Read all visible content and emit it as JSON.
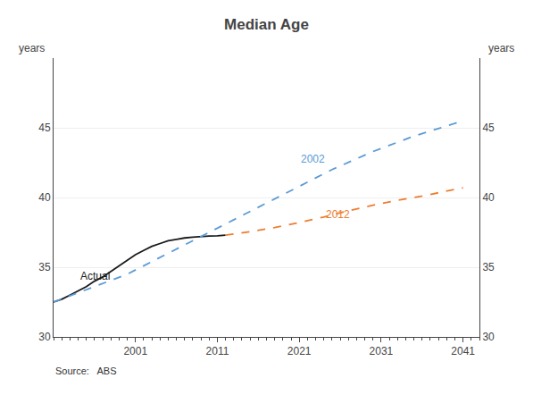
{
  "chart_data": {
    "type": "line",
    "title": "Median Age",
    "ylabel": "years",
    "y2label": "years",
    "source": "Source:   ABS",
    "xlim": [
      1991,
      2043
    ],
    "xticks": [
      2001,
      2011,
      2021,
      2031,
      2041
    ],
    "ylim": [
      30,
      50
    ],
    "yticks": [
      30,
      35,
      40,
      45
    ],
    "y2lim": [
      30,
      50
    ],
    "y2ticks": [
      30,
      35,
      40,
      45
    ],
    "grid": "y",
    "series": [
      {
        "color": "#1a1a1a",
        "line_style": "solid",
        "x": [
          1991,
          1992,
          1993,
          1994,
          1995,
          1996,
          1997,
          1998,
          1999,
          2000,
          2001,
          2002,
          2003,
          2004,
          2005,
          2006,
          2007,
          2008,
          2009,
          2010,
          2011,
          2012
        ],
        "values": [
          32.5,
          32.7,
          33.0,
          33.3,
          33.6,
          34.0,
          34.3,
          34.7,
          35.1,
          35.5,
          35.9,
          36.2,
          36.5,
          36.7,
          36.9,
          37.0,
          37.1,
          37.15,
          37.2,
          37.23,
          37.25,
          37.3
        ]
      },
      {
        "color": "#5B9BD5",
        "line_style": "dash",
        "x": [
          1991,
          1995,
          2000,
          2005,
          2010,
          2015,
          2020,
          2025,
          2030,
          2035,
          2041
        ],
        "values": [
          32.5,
          33.4,
          34.5,
          36.0,
          37.5,
          39.0,
          40.5,
          42.0,
          43.3,
          44.4,
          45.5
        ]
      },
      {
        "color": "#ED7D31",
        "line_style": "dash",
        "x": [
          2012,
          2015,
          2018,
          2021,
          2024,
          2027,
          2030,
          2033,
          2036,
          2039,
          2041
        ],
        "values": [
          37.3,
          37.55,
          37.85,
          38.2,
          38.6,
          39.05,
          39.45,
          39.8,
          40.1,
          40.45,
          40.7
        ]
      }
    ],
    "annotations": [
      {
        "text": "Actual",
        "x": 1994,
        "y": 33.8,
        "color": "#1a1a1a"
      },
      {
        "text": "2002",
        "x": 2021,
        "y": 42.2,
        "color": "#5B9BD5"
      },
      {
        "text": "2012",
        "x": 2024,
        "y": 38.2,
        "color": "#ED7D31"
      }
    ]
  }
}
